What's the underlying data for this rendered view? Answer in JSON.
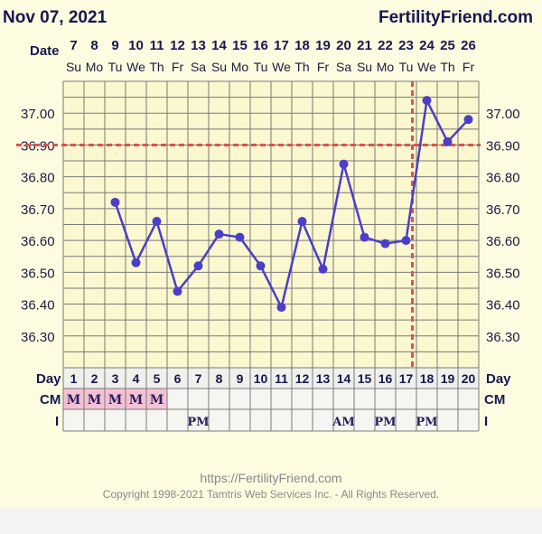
{
  "header": {
    "date": "Nov 07, 2021",
    "brand": "FertilityFriend.com"
  },
  "labels": {
    "date_row": "Date",
    "day_row": "Day",
    "cm_row": "CM",
    "i_row": "I"
  },
  "colors": {
    "background": "#fdfbe0",
    "grid": "#7a7a7a",
    "line": "#4a3fc8",
    "coverline": "#d9534f",
    "cm_cell": "#f4c2d4",
    "row_bg": "#f5f5f2"
  },
  "chart_data": {
    "type": "line",
    "x": [
      1,
      2,
      3,
      4,
      5,
      6,
      7,
      8,
      9,
      10,
      11,
      12,
      13,
      14,
      15,
      16,
      17,
      18,
      19,
      20
    ],
    "dates": [
      "7",
      "8",
      "9",
      "10",
      "11",
      "12",
      "13",
      "14",
      "15",
      "16",
      "17",
      "18",
      "19",
      "20",
      "21",
      "22",
      "23",
      "24",
      "25",
      "26"
    ],
    "weekdays": [
      "Su",
      "Mo",
      "Tu",
      "We",
      "Th",
      "Fr",
      "Sa",
      "Su",
      "Mo",
      "Tu",
      "We",
      "Th",
      "Fr",
      "Sa",
      "Su",
      "Mo",
      "Tu",
      "We",
      "Th",
      "Fr"
    ],
    "temperatures": [
      null,
      null,
      36.72,
      36.53,
      36.66,
      36.44,
      36.52,
      36.62,
      36.61,
      36.52,
      36.39,
      36.66,
      36.51,
      36.84,
      36.61,
      36.59,
      36.6,
      37.04,
      36.91,
      36.98
    ],
    "y_ticks": [
      "37.00",
      "36.90",
      "36.80",
      "36.70",
      "36.60",
      "36.50",
      "36.40",
      "36.30"
    ],
    "ylim": [
      36.2,
      37.1
    ],
    "coverline": 36.9,
    "ovulation_day": 17,
    "cervical_mucus": [
      "M",
      "M",
      "M",
      "M",
      "M",
      "",
      "",
      "",
      "",
      "",
      "",
      "",
      "",
      "",
      "",
      "",
      "",
      "",
      "",
      ""
    ],
    "intercourse": [
      "",
      "",
      "",
      "",
      "",
      "",
      "PM",
      "",
      "",
      "",
      "",
      "",
      "",
      "AM",
      "",
      "PM",
      "",
      "PM",
      "",
      ""
    ],
    "grid": true
  },
  "footer": {
    "url": "https://FertilityFriend.com",
    "copyright": "Copyright 1998-2021 Tamtris Web Services Inc. - All Rights Reserved."
  }
}
